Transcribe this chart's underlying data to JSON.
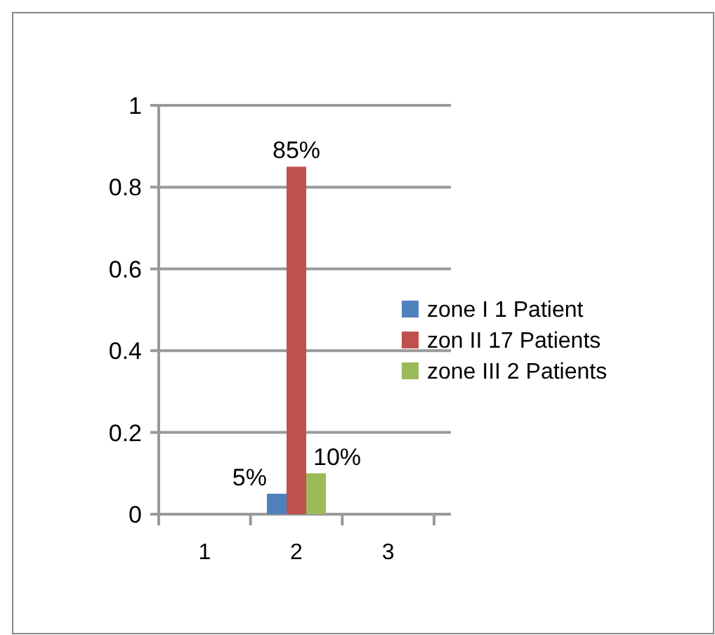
{
  "chart_data": {
    "type": "bar",
    "categories": [
      "1",
      "2",
      "3"
    ],
    "series": [
      {
        "name": "zone I 1 Patient",
        "color": "#4f81bd",
        "values": [
          null,
          0.05,
          null
        ],
        "value_labels": [
          null,
          "5%",
          null
        ]
      },
      {
        "name": "zon II 17 Patients",
        "color": "#c0504d",
        "values": [
          null,
          0.85,
          null
        ],
        "value_labels": [
          null,
          "85%",
          null
        ]
      },
      {
        "name": "zone III 2 Patients",
        "color": "#9bbb59",
        "values": [
          null,
          0.1,
          null
        ],
        "value_labels": [
          null,
          "10%",
          null
        ]
      }
    ],
    "ylim": [
      0,
      1
    ],
    "yticks": [
      0,
      0.2,
      0.4,
      0.6,
      0.8,
      1
    ],
    "grid": "y",
    "legend": "right"
  }
}
